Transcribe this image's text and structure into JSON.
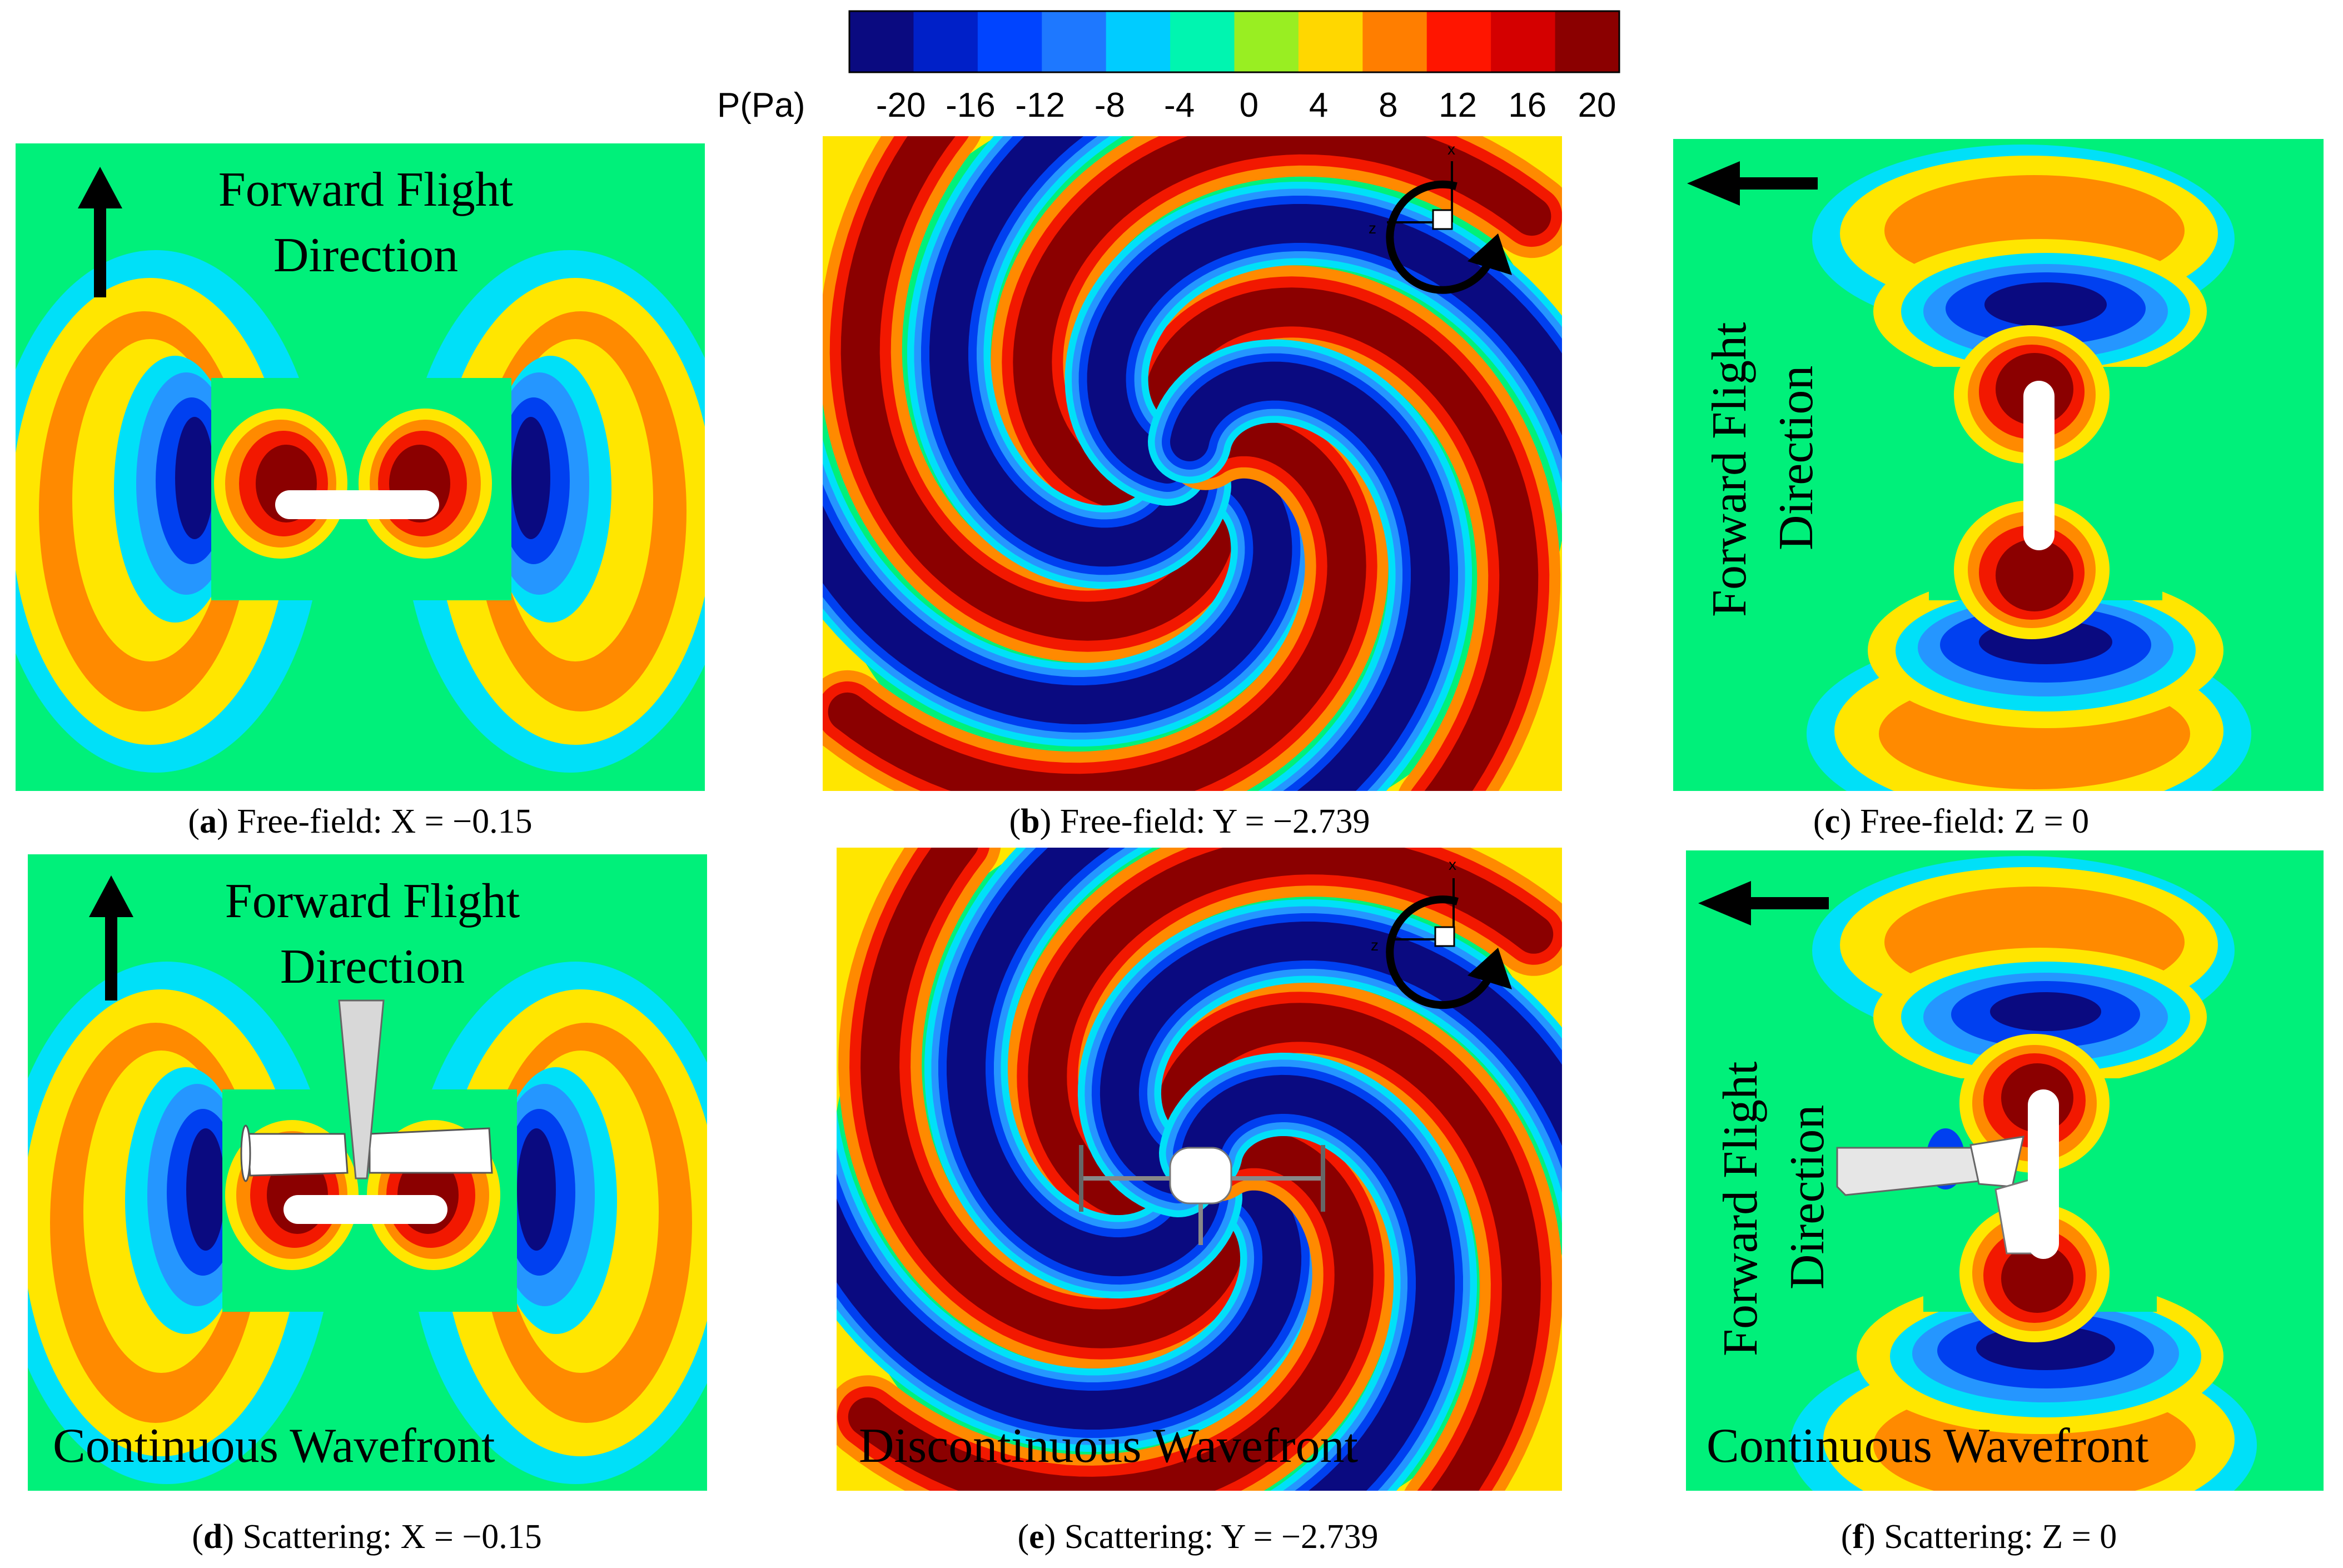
{
  "colorbar": {
    "label": "P(Pa)",
    "ticks": [
      "-20",
      "-16",
      "-12",
      "-8",
      "-4",
      "0",
      "4",
      "8",
      "12",
      "16",
      "20"
    ],
    "colors": [
      "#0a0a80",
      "#0020c8",
      "#0044ff",
      "#1e78ff",
      "#00ccff",
      "#00f5b0",
      "#99ee22",
      "#ffd700",
      "#ff7e00",
      "#ff1500",
      "#d40000",
      "#8b0000"
    ]
  },
  "palette": {
    "background": "#00f07a",
    "deep_blue": "#0a0a80",
    "blue": "#0040f0",
    "light_blue": "#2596ff",
    "cyan": "#00e0f8",
    "yellow": "#ffe600",
    "orange": "#ff8a00",
    "red": "#f21800",
    "dark_red": "#8b0000",
    "white": "#ffffff",
    "arrow": "#000000"
  },
  "panels": [
    {
      "id": "a",
      "letter": "a",
      "caption": " Free-field: X = −0.15",
      "label_line1": "Forward Flight",
      "label_line2": "Direction",
      "bottom_label": ""
    },
    {
      "id": "b",
      "letter": "b",
      "caption": " Free-field: Y = −2.739",
      "label_line1": "",
      "label_line2": "",
      "bottom_label": ""
    },
    {
      "id": "c",
      "letter": "c",
      "caption": " Free-field: Z = 0",
      "label_line1": "Forward Flight",
      "label_line2": "Direction",
      "bottom_label": ""
    },
    {
      "id": "d",
      "letter": "d",
      "caption": " Scattering: X = −0.15",
      "label_line1": "Forward Flight",
      "label_line2": "Direction",
      "bottom_label": "Continuous Wavefront"
    },
    {
      "id": "e",
      "letter": "e",
      "caption": " Scattering: Y = −2.739",
      "label_line1": "",
      "label_line2": "",
      "bottom_label": "Discontinuous Wavefront"
    },
    {
      "id": "f",
      "letter": "f",
      "caption": " Scattering: Z = 0",
      "label_line1": "Forward Flight",
      "label_line2": "Direction",
      "bottom_label": "Continuous Wavefront"
    }
  ],
  "axis_triad": {
    "x": "x",
    "z": "z"
  }
}
